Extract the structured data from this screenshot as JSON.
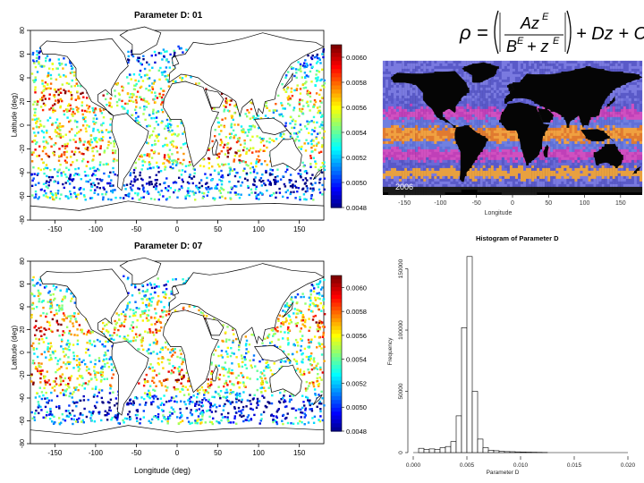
{
  "chart_data": [
    {
      "type": "heatmap",
      "title": "Parameter D: 01",
      "xlabel": "",
      "ylabel": "Latitude (deg)",
      "xticks": [
        "-150",
        "-100",
        "-50",
        "0",
        "50",
        "100",
        "150"
      ],
      "yticks": [
        "-80",
        "-60",
        "-40",
        "-20",
        "0",
        "20",
        "40",
        "60",
        "80"
      ],
      "xlim": [
        -180,
        180
      ],
      "ylim": [
        -80,
        80
      ],
      "colorbar_ticks": [
        "0.0048",
        "0.0050",
        "0.0052",
        "0.0054",
        "0.0056",
        "0.0058",
        "0.0060"
      ],
      "colorbar_range": [
        0.0048,
        0.0061
      ]
    },
    {
      "type": "heatmap",
      "title": "Parameter D: 07",
      "xlabel": "Longitude (deg)",
      "ylabel": "Latitude (deg)",
      "xticks": [
        "-150",
        "-100",
        "-50",
        "0",
        "50",
        "100",
        "150"
      ],
      "yticks": [
        "-80",
        "-60",
        "-40",
        "-20",
        "0",
        "20",
        "40",
        "60",
        "80"
      ],
      "xlim": [
        -180,
        180
      ],
      "ylim": [
        -80,
        80
      ],
      "colorbar_ticks": [
        "0.0048",
        "0.0050",
        "0.0052",
        "0.0054",
        "0.0056",
        "0.0058",
        "0.0060"
      ],
      "colorbar_range": [
        0.0048,
        0.0061
      ]
    },
    {
      "type": "heatmap",
      "title": "",
      "xlabel": "Longitude",
      "year_label": "2006",
      "xticks": [
        "-150",
        "-100",
        "-50",
        "0",
        "50",
        "100",
        "150"
      ],
      "xlim": [
        -180,
        180
      ]
    },
    {
      "type": "bar",
      "title": "Histogram of Parameter D",
      "xlabel": "Parameter D",
      "ylabel": "Frequency",
      "xticks": [
        "0.000",
        "0.005",
        "0.010",
        "0.015",
        "0.020"
      ],
      "yticks": [
        "0",
        "50000",
        "100000",
        "150000"
      ],
      "xlim": [
        0,
        0.02
      ],
      "ylim": [
        0,
        165000
      ],
      "bin_width": 0.0005,
      "bin_starts": [
        0.0005,
        0.001,
        0.0015,
        0.002,
        0.0025,
        0.003,
        0.0035,
        0.004,
        0.0045,
        0.005,
        0.0055,
        0.006,
        0.0065,
        0.007,
        0.0075,
        0.008,
        0.0085,
        0.009,
        0.0095,
        0.01,
        0.0105,
        0.011,
        0.0115,
        0.012
      ],
      "values": [
        3500,
        2500,
        3000,
        2500,
        4000,
        5000,
        9000,
        30000,
        102000,
        160000,
        50000,
        11000,
        4000,
        2000,
        1500,
        1000,
        800,
        700,
        600,
        500,
        400,
        300,
        200,
        150
      ]
    }
  ],
  "equation": {
    "lhs": "ρ =",
    "numerator": "Az^E",
    "denominator": "B^E + z^E",
    "rhs": "+ Dz + C"
  }
}
